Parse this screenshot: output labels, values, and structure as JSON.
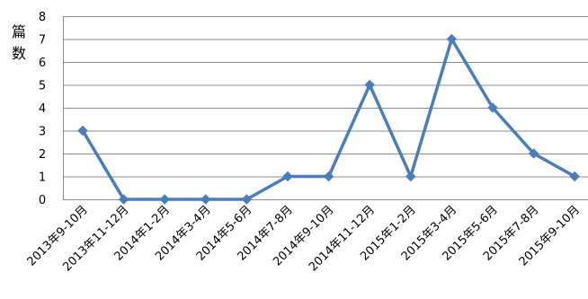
{
  "chart_data": {
    "type": "line",
    "title": "",
    "xlabel": "",
    "ylabel": "篇数",
    "ylim": [
      0,
      8
    ],
    "yticks": [
      0,
      1,
      2,
      3,
      4,
      5,
      6,
      7,
      8
    ],
    "grid": true,
    "legend": "none",
    "categories": [
      "2013年9-10月",
      "2013年11-12月",
      "2014年1-2月",
      "2014年3-4月",
      "2014年5-6月",
      "2014年7-8月",
      "2014年9-10月",
      "2014年11-12月",
      "2015年1-2月",
      "2015年3-4月",
      "2015年5-6月",
      "2015年7-8月",
      "2015年9-10月"
    ],
    "series": [
      {
        "values": [
          3,
          0,
          0,
          0,
          0,
          1,
          1,
          5,
          1,
          7,
          4,
          2,
          1
        ],
        "color": "#4a7ebb",
        "marker": "diamond"
      }
    ]
  }
}
